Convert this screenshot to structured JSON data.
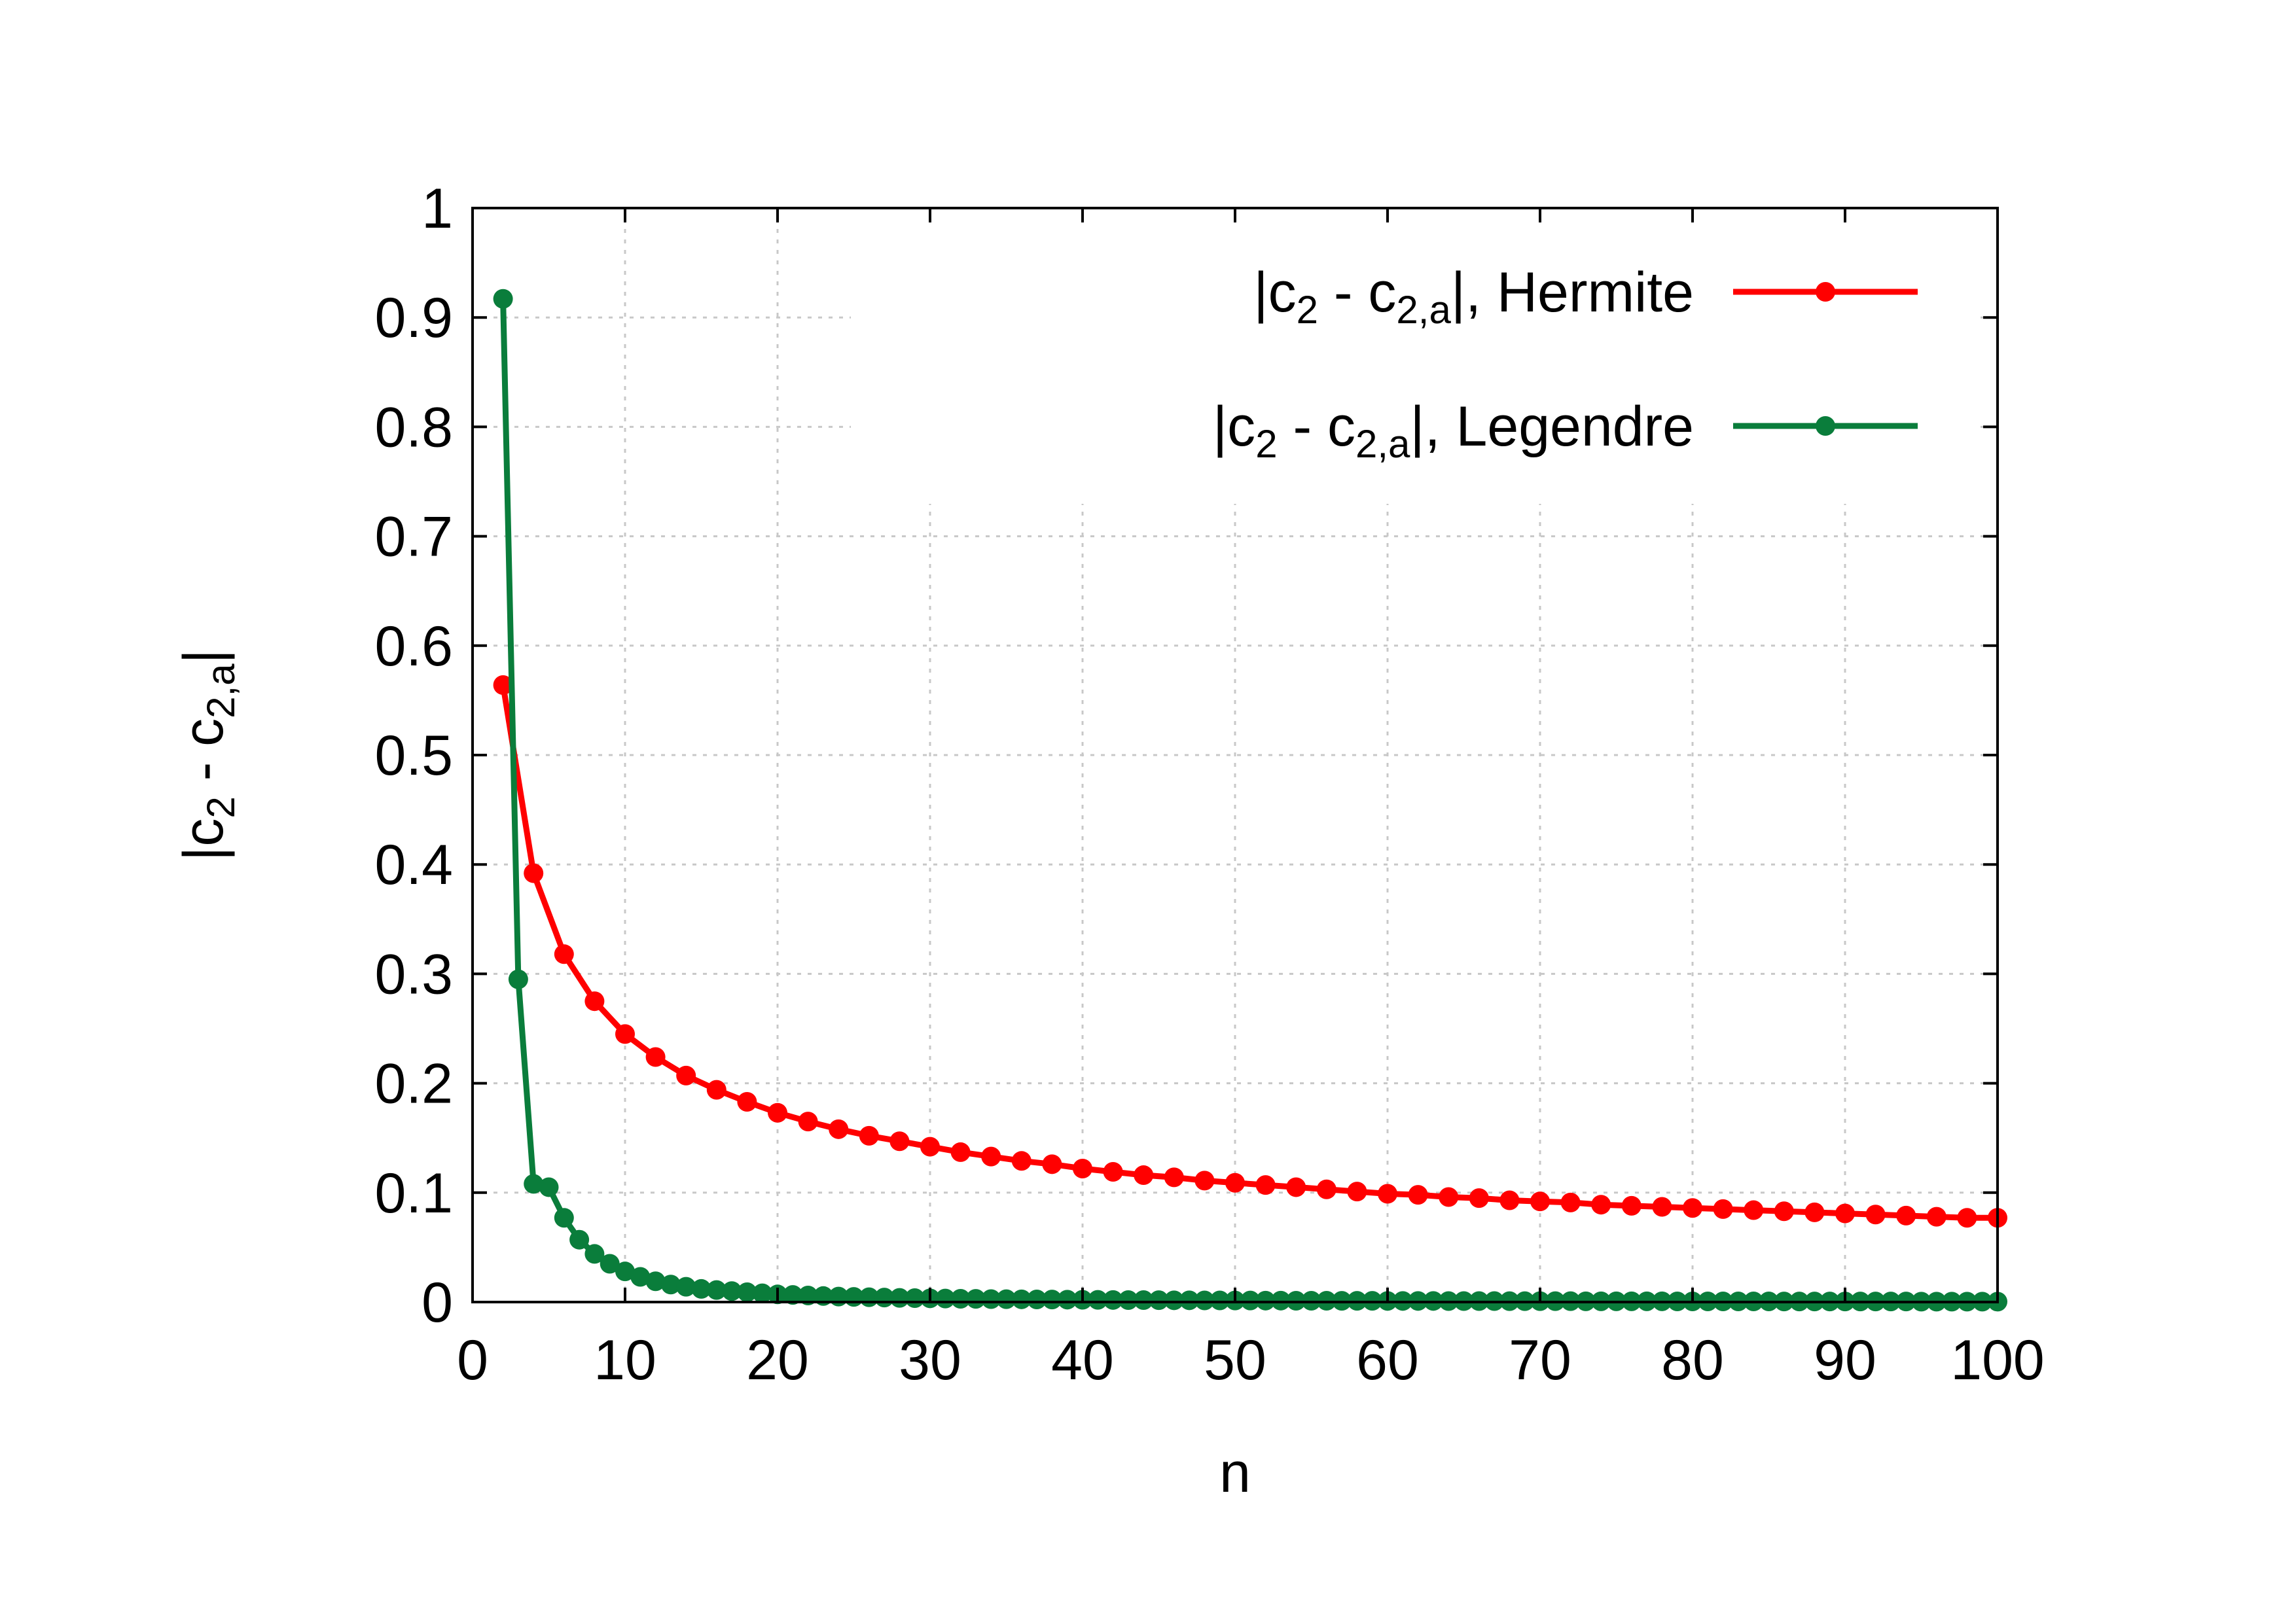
{
  "chart_data": {
    "type": "line",
    "xlabel": "n",
    "ylabel": "|c2 - c2,a|",
    "xlim": [
      0,
      100
    ],
    "ylim": [
      0,
      1
    ],
    "xticks": [
      "0",
      "10",
      "20",
      "30",
      "40",
      "50",
      "60",
      "70",
      "80",
      "90",
      "100"
    ],
    "yticks": [
      "0",
      "0.1",
      "0.2",
      "0.3",
      "0.4",
      "0.5",
      "0.6",
      "0.7",
      "0.8",
      "0.9",
      "1"
    ],
    "grid": true,
    "legend_position": "top-right",
    "series": [
      {
        "name": "|c2 - c2,a|, Hermite",
        "color": "#ff0000",
        "marker": "circle",
        "x": [
          2,
          4,
          6,
          8,
          10,
          12,
          14,
          16,
          18,
          20,
          22,
          24,
          26,
          28,
          30,
          32,
          34,
          36,
          38,
          40,
          42,
          44,
          46,
          48,
          50,
          52,
          54,
          56,
          58,
          60,
          62,
          64,
          66,
          68,
          70,
          72,
          74,
          76,
          78,
          80,
          82,
          84,
          86,
          88,
          90,
          92,
          94,
          96,
          98,
          100
        ],
        "y": [
          0.564,
          0.392,
          0.318,
          0.275,
          0.245,
          0.224,
          0.207,
          0.194,
          0.183,
          0.173,
          0.165,
          0.158,
          0.152,
          0.147,
          0.142,
          0.137,
          0.133,
          0.129,
          0.126,
          0.122,
          0.119,
          0.116,
          0.114,
          0.111,
          0.109,
          0.107,
          0.105,
          0.103,
          0.101,
          0.099,
          0.098,
          0.096,
          0.095,
          0.093,
          0.092,
          0.091,
          0.089,
          0.088,
          0.087,
          0.086,
          0.085,
          0.084,
          0.083,
          0.082,
          0.081,
          0.08,
          0.079,
          0.078,
          0.077,
          0.077
        ]
      },
      {
        "name": "|c2 - c2,a|, Legendre",
        "color": "#0a7d3b",
        "marker": "circle",
        "x": [
          2,
          3,
          4,
          5,
          6,
          7,
          8,
          9,
          10,
          11,
          12,
          13,
          14,
          15,
          16,
          17,
          18,
          19,
          20,
          21,
          22,
          23,
          24,
          25,
          26,
          27,
          28,
          29,
          30,
          31,
          32,
          33,
          34,
          35,
          36,
          37,
          38,
          39,
          40,
          41,
          42,
          43,
          44,
          45,
          46,
          47,
          48,
          49,
          50,
          51,
          52,
          53,
          54,
          55,
          56,
          57,
          58,
          59,
          60,
          61,
          62,
          63,
          64,
          65,
          66,
          67,
          68,
          69,
          70,
          71,
          72,
          73,
          74,
          75,
          76,
          77,
          78,
          79,
          80,
          81,
          82,
          83,
          84,
          85,
          86,
          87,
          88,
          89,
          90,
          91,
          92,
          93,
          94,
          95,
          96,
          97,
          98,
          99,
          100
        ],
        "y": [
          0.917,
          0.295,
          0.108,
          0.105,
          0.077,
          0.057,
          0.044,
          0.035,
          0.028,
          0.023,
          0.019,
          0.016,
          0.014,
          0.012,
          0.011,
          0.01,
          0.009,
          0.008,
          0.007,
          0.0065,
          0.006,
          0.0055,
          0.005,
          0.0047,
          0.0044,
          0.0041,
          0.0038,
          0.0036,
          0.0034,
          0.0032,
          0.003,
          0.0029,
          0.0027,
          0.0026,
          0.0025,
          0.0024,
          0.0023,
          0.0022,
          0.0021,
          0.002,
          0.0019,
          0.0018,
          0.0018,
          0.0017,
          0.0016,
          0.0016,
          0.0015,
          0.0015,
          0.0014,
          0.0014,
          0.0013,
          0.0013,
          0.0012,
          0.0012,
          0.0012,
          0.0011,
          0.0011,
          0.0011,
          0.001,
          0.001,
          0.001,
          0.001,
          0.0009,
          0.0009,
          0.0009,
          0.0009,
          0.0008,
          0.0008,
          0.0008,
          0.0008,
          0.0008,
          0.0007,
          0.0007,
          0.0007,
          0.0007,
          0.0007,
          0.0007,
          0.0006,
          0.0006,
          0.0006,
          0.0006,
          0.0006,
          0.0006,
          0.0006,
          0.0005,
          0.0005,
          0.0005,
          0.0005,
          0.0005,
          0.0005,
          0.0005,
          0.0005,
          0.0005,
          0.0004,
          0.0004,
          0.0004,
          0.0004,
          0.0004,
          0.0004
        ]
      }
    ]
  }
}
